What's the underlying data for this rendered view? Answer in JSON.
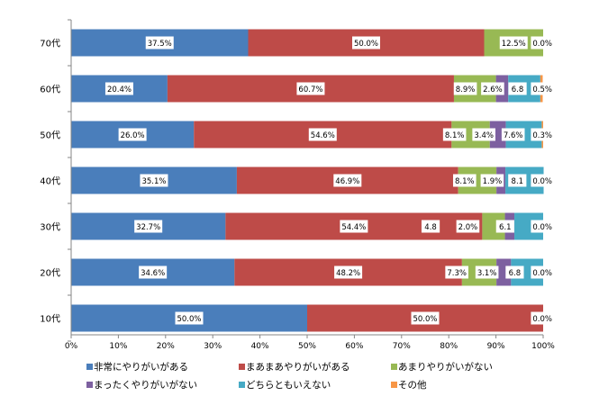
{
  "chart_data": {
    "type": "bar",
    "orientation": "horizontal",
    "stacked": "percent",
    "title": "",
    "xlabel": "",
    "ylabel": "",
    "xlim": [
      0,
      100
    ],
    "x_ticks": [
      "0%",
      "10%",
      "20%",
      "30%",
      "40%",
      "50%",
      "60%",
      "70%",
      "80%",
      "90%",
      "100%"
    ],
    "grid": false,
    "legend_position": "bottom",
    "categories": [
      "70代",
      "60代",
      "50代",
      "40代",
      "30代",
      "20代",
      "10代"
    ],
    "series": [
      {
        "name": "非常にやりがいがある",
        "color": "#4a7ebb",
        "values": [
          37.5,
          20.4,
          26.0,
          35.1,
          32.7,
          34.6,
          50.0
        ],
        "labels": [
          "37.5%",
          "20.4%",
          "26.0%",
          "35.1%",
          "32.7%",
          "34.6%",
          "50.0%"
        ]
      },
      {
        "name": "まあまあやりがいがある",
        "color": "#be4b48",
        "values": [
          50.0,
          60.7,
          54.6,
          46.9,
          54.4,
          48.2,
          50.0
        ],
        "labels": [
          "50.0%",
          "60.7%",
          "54.6%",
          "46.9%",
          "54.4%",
          "48.2%",
          "50.0%"
        ]
      },
      {
        "name": "あまりやりがいがない",
        "color": "#98b954",
        "values": [
          12.5,
          8.9,
          8.1,
          8.1,
          4.8,
          7.3,
          0
        ],
        "labels": [
          "12.5%",
          "8.9%",
          "8.1%",
          "8.1%",
          "4.8",
          "7.3%",
          ""
        ]
      },
      {
        "name": "まったくやりがいがない",
        "color": "#7d60a0",
        "values": [
          0,
          2.6,
          3.4,
          1.9,
          2.0,
          3.1,
          0
        ],
        "labels": [
          "",
          "2.6%",
          "3.4%",
          "1.9%",
          "2.0%",
          "3.1%",
          ""
        ]
      },
      {
        "name": "どちらともいえない",
        "color": "#46aac5",
        "values": [
          0,
          6.8,
          7.6,
          8.1,
          6.1,
          6.8,
          0
        ],
        "labels": [
          "",
          "6.8",
          "7.6%",
          "8.1",
          "6.1",
          "6.8",
          ""
        ]
      },
      {
        "name": "その他",
        "color": "#f79646",
        "values": [
          0,
          0.5,
          0.3,
          0,
          0,
          0,
          0
        ],
        "labels": [
          "0.0%",
          "0.5%",
          "0.3%",
          "0.0%",
          "0.0%",
          "0.0%",
          "0.0%"
        ]
      }
    ]
  }
}
